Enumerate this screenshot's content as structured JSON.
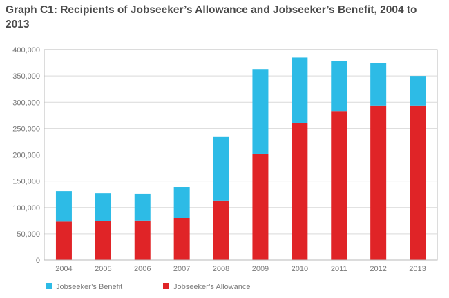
{
  "chart_data": {
    "type": "bar",
    "stacked": true,
    "title": "Graph C1: Recipients of Jobseeker’s Allowance and Jobseeker’s Benefit, 2004 to 2013",
    "xlabel": "",
    "ylabel": "",
    "categories": [
      "2004",
      "2005",
      "2006",
      "2007",
      "2008",
      "2009",
      "2010",
      "2011",
      "2012",
      "2013"
    ],
    "ylim": [
      0,
      400000
    ],
    "yticks": [
      "0",
      "50,000",
      "100,000",
      "150,000",
      "200,000",
      "250,000",
      "300,000",
      "350,000",
      "400,000"
    ],
    "series": [
      {
        "name": "Jobseeker’s Allowance",
        "color": "#e02427",
        "values": [
          73000,
          74000,
          75000,
          80000,
          113000,
          202000,
          261000,
          283000,
          294000,
          294000
        ]
      },
      {
        "name": "Jobseeker’s Benefit",
        "color": "#2dbbe6",
        "values": [
          58000,
          53000,
          51000,
          59000,
          122000,
          161000,
          124000,
          96000,
          80000,
          56000
        ]
      }
    ],
    "legend_order": [
      "Jobseeker’s Benefit",
      "Jobseeker’s Allowance"
    ],
    "legend_position": "bottom-left",
    "grid": true
  }
}
